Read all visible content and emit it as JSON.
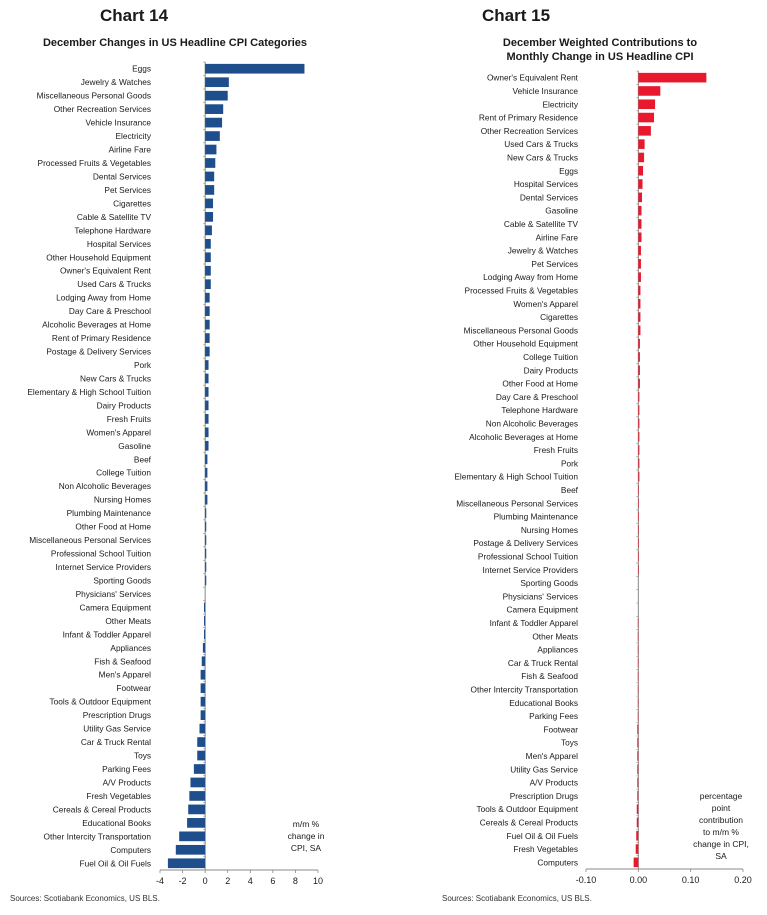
{
  "chart14": {
    "number": "Chart 14",
    "title": "December Changes in US Headline CPI Categories",
    "note": [
      "m/m %",
      "change in",
      "CPI, SA"
    ],
    "source": "Sources: Scotiabank Economics, US BLS."
  },
  "chart15": {
    "number": "Chart 15",
    "title_lines": [
      "December Weighted Contributions to",
      "Monthly Change in US Headline CPI"
    ],
    "note": [
      "percentage",
      "point",
      "contribution",
      "to m/m %",
      "change in CPI,",
      "SA"
    ],
    "source": "Sources: Scotiabank Economics, US BLS."
  },
  "colors": {
    "chart14_bar": "#1f4e8c",
    "chart15_bar": "#e8192c",
    "axis": "#888888"
  },
  "chart_data": [
    {
      "type": "bar",
      "orientation": "horizontal",
      "title": "December Changes in US Headline CPI Categories",
      "xlabel": "m/m % change in CPI, SA",
      "xlim": [
        -4,
        10
      ],
      "xticks": [
        -4,
        -2,
        0,
        2,
        4,
        6,
        8,
        10
      ],
      "categories": [
        "Eggs",
        "Jewelry & Watches",
        "Miscellaneous Personal Goods",
        "Other Recreation Services",
        "Vehicle Insurance",
        "Electricity",
        "Airline Fare",
        "Processed Fruits & Vegetables",
        "Dental Services",
        "Pet Services",
        "Cigarettes",
        "Cable & Satellite TV",
        "Telephone Hardware",
        "Hospital Services",
        "Other Household Equipment",
        "Owner's Equivalent Rent",
        "Used Cars & Trucks",
        "Lodging Away from Home",
        "Day Care & Preschool",
        "Alcoholic Beverages at Home",
        "Rent of Primary Residence",
        "Postage & Delivery Services",
        "Pork",
        "New Cars & Trucks",
        "Elementary & High School Tuition",
        "Dairy Products",
        "Fresh Fruits",
        "Women's Apparel",
        "Gasoline",
        "Beef",
        "College Tuition",
        "Non Alcoholic Beverages",
        "Nursing Homes",
        "Plumbing Maintenance",
        "Other Food at Home",
        "Miscellaneous Personal Services",
        "Professional School Tuition",
        "Internet Service Providers",
        "Sporting Goods",
        "Physicians' Services",
        "Camera Equipment",
        "Other Meats",
        "Infant & Toddler Apparel",
        "Appliances",
        "Fish & Seafood",
        "Men's Apparel",
        "Footwear",
        "Tools & Outdoor Equipment",
        "Prescription Drugs",
        "Utility Gas Service",
        "Car & Truck Rental",
        "Toys",
        "Parking Fees",
        "A/V Products",
        "Fresh Vegetables",
        "Cereals & Cereal Products",
        "Educational Books",
        "Other Intercity Transportation",
        "Computers",
        "Fuel Oil & Oil Fuels"
      ],
      "values": [
        8.8,
        2.1,
        2.0,
        1.6,
        1.5,
        1.3,
        1.0,
        0.9,
        0.8,
        0.8,
        0.7,
        0.7,
        0.6,
        0.5,
        0.5,
        0.5,
        0.5,
        0.4,
        0.4,
        0.4,
        0.4,
        0.4,
        0.3,
        0.3,
        0.3,
        0.3,
        0.3,
        0.3,
        0.3,
        0.2,
        0.2,
        0.2,
        0.2,
        0.1,
        0.1,
        0.1,
        0.1,
        0.1,
        0.1,
        0.0,
        -0.1,
        -0.1,
        -0.1,
        -0.2,
        -0.3,
        -0.4,
        -0.4,
        -0.4,
        -0.4,
        -0.5,
        -0.7,
        -0.7,
        -1.0,
        -1.3,
        -1.4,
        -1.5,
        -1.6,
        -2.3,
        -2.6,
        -3.3
      ]
    },
    {
      "type": "bar",
      "orientation": "horizontal",
      "title": "December Weighted Contributions to Monthly Change in US Headline CPI",
      "xlabel": "percentage point contribution to m/m % change in CPI, SA",
      "xlim": [
        -0.1,
        0.2
      ],
      "xticks": [
        -0.1,
        0.0,
        0.1,
        0.2
      ],
      "xtick_labels": [
        "-0.10",
        "0.00",
        "0.10",
        "0.20"
      ],
      "categories": [
        "Owner's Equivalent Rent",
        "Vehicle Insurance",
        "Electricity",
        "Rent of Primary Residence",
        "Other Recreation Services",
        "Used Cars & Trucks",
        "New Cars & Trucks",
        "Eggs",
        "Hospital Services",
        "Dental Services",
        "Gasoline",
        "Cable & Satellite TV",
        "Airline Fare",
        "Jewelry & Watches",
        "Pet Services",
        "Lodging Away from Home",
        "Processed Fruits & Vegetables",
        "Women's Apparel",
        "Cigarettes",
        "Miscellaneous Personal Goods",
        "Other Household Equipment",
        "College Tuition",
        "Dairy Products",
        "Other Food at Home",
        "Day Care & Preschool",
        "Telephone Hardware",
        "Non Alcoholic Beverages",
        "Alcoholic Beverages at Home",
        "Fresh Fruits",
        "Pork",
        "Elementary & High School Tuition",
        "Beef",
        "Miscellaneous Personal Services",
        "Plumbing Maintenance",
        "Nursing Homes",
        "Postage & Delivery Services",
        "Professional School Tuition",
        "Internet Service Providers",
        "Sporting Goods",
        "Physicians' Services",
        "Camera Equipment",
        "Infant & Toddler Apparel",
        "Other Meats",
        "Appliances",
        "Car & Truck Rental",
        "Fish & Seafood",
        "Other Intercity Transportation",
        "Educational Books",
        "Parking Fees",
        "Footwear",
        "Toys",
        "Men's Apparel",
        "Utility Gas Service",
        "A/V Products",
        "Prescription Drugs",
        "Tools & Outdoor Equipment",
        "Cereals & Cereal Products",
        "Fuel Oil & Oil Fuels",
        "Fresh Vegetables",
        "Computers"
      ],
      "values": [
        0.13,
        0.042,
        0.032,
        0.03,
        0.024,
        0.012,
        0.011,
        0.009,
        0.008,
        0.007,
        0.006,
        0.006,
        0.006,
        0.005,
        0.005,
        0.005,
        0.004,
        0.004,
        0.004,
        0.004,
        0.003,
        0.003,
        0.003,
        0.003,
        0.002,
        0.002,
        0.002,
        0.002,
        0.002,
        0.002,
        0.002,
        0.001,
        0.001,
        0.001,
        0.001,
        0.001,
        0.001,
        0.001,
        0.0,
        0.0,
        0.0,
        -0.001,
        -0.001,
        -0.001,
        -0.001,
        -0.001,
        -0.001,
        -0.001,
        -0.001,
        -0.002,
        -0.002,
        -0.002,
        -0.002,
        -0.002,
        -0.002,
        -0.003,
        -0.003,
        -0.004,
        -0.005,
        -0.009
      ]
    }
  ]
}
